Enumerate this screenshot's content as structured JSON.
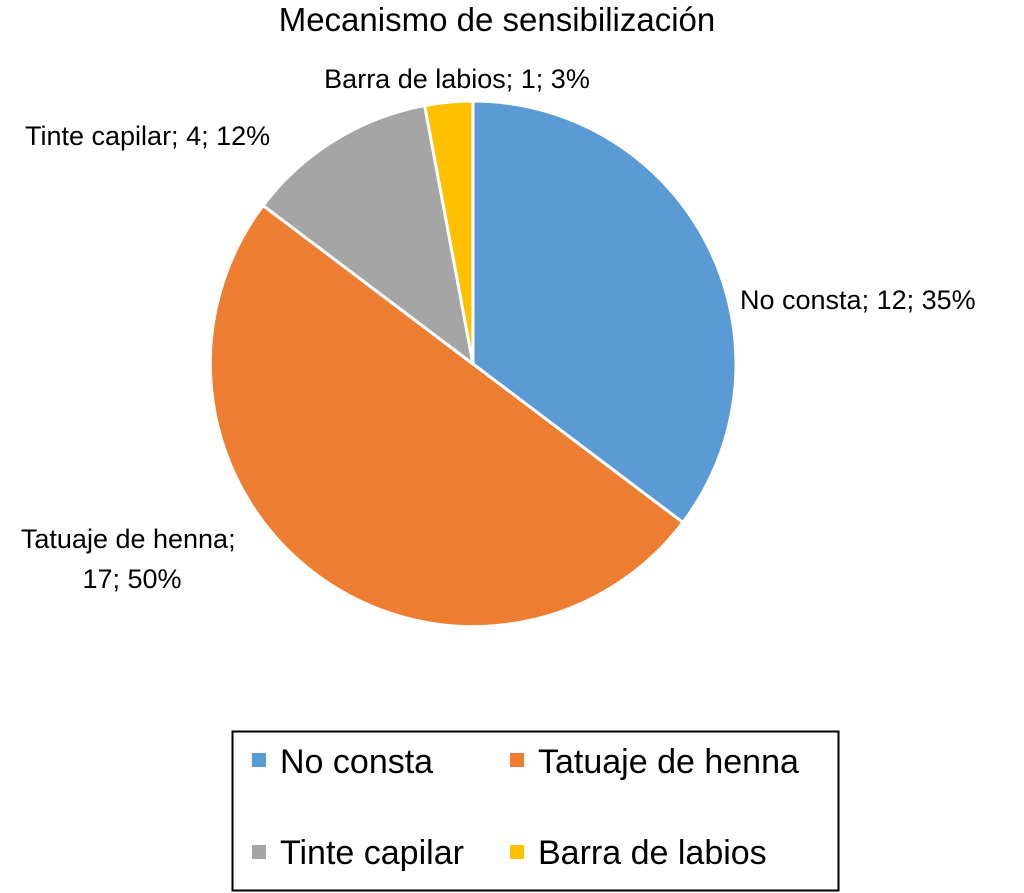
{
  "chart_data": {
    "type": "pie",
    "title": "Mecanismo de sensibilización",
    "slices": [
      {
        "name": "No consta",
        "value": 12,
        "percent": "35%",
        "label": "No consta; 12; 35%",
        "color": "#5B9BD5"
      },
      {
        "name": "Tatuaje de henna",
        "value": 17,
        "percent": "50%",
        "label_lines": [
          "Tatuaje de henna;",
          "17; 50%"
        ],
        "color": "#ED7D31"
      },
      {
        "name": "Tinte capilar",
        "value": 4,
        "percent": "12%",
        "label": "Tinte capilar; 4; 12%",
        "color": "#A5A5A5"
      },
      {
        "name": "Barra de labios",
        "value": 1,
        "percent": "3%",
        "label": "Barra de labios; 1; 3%",
        "color": "#FFC000"
      }
    ],
    "start_angle": "12 o'clock, clockwise",
    "legend_position": "bottom",
    "legend": [
      "No consta",
      "Tatuaje de henna",
      "Tinte capilar",
      "Barra de labios"
    ]
  }
}
